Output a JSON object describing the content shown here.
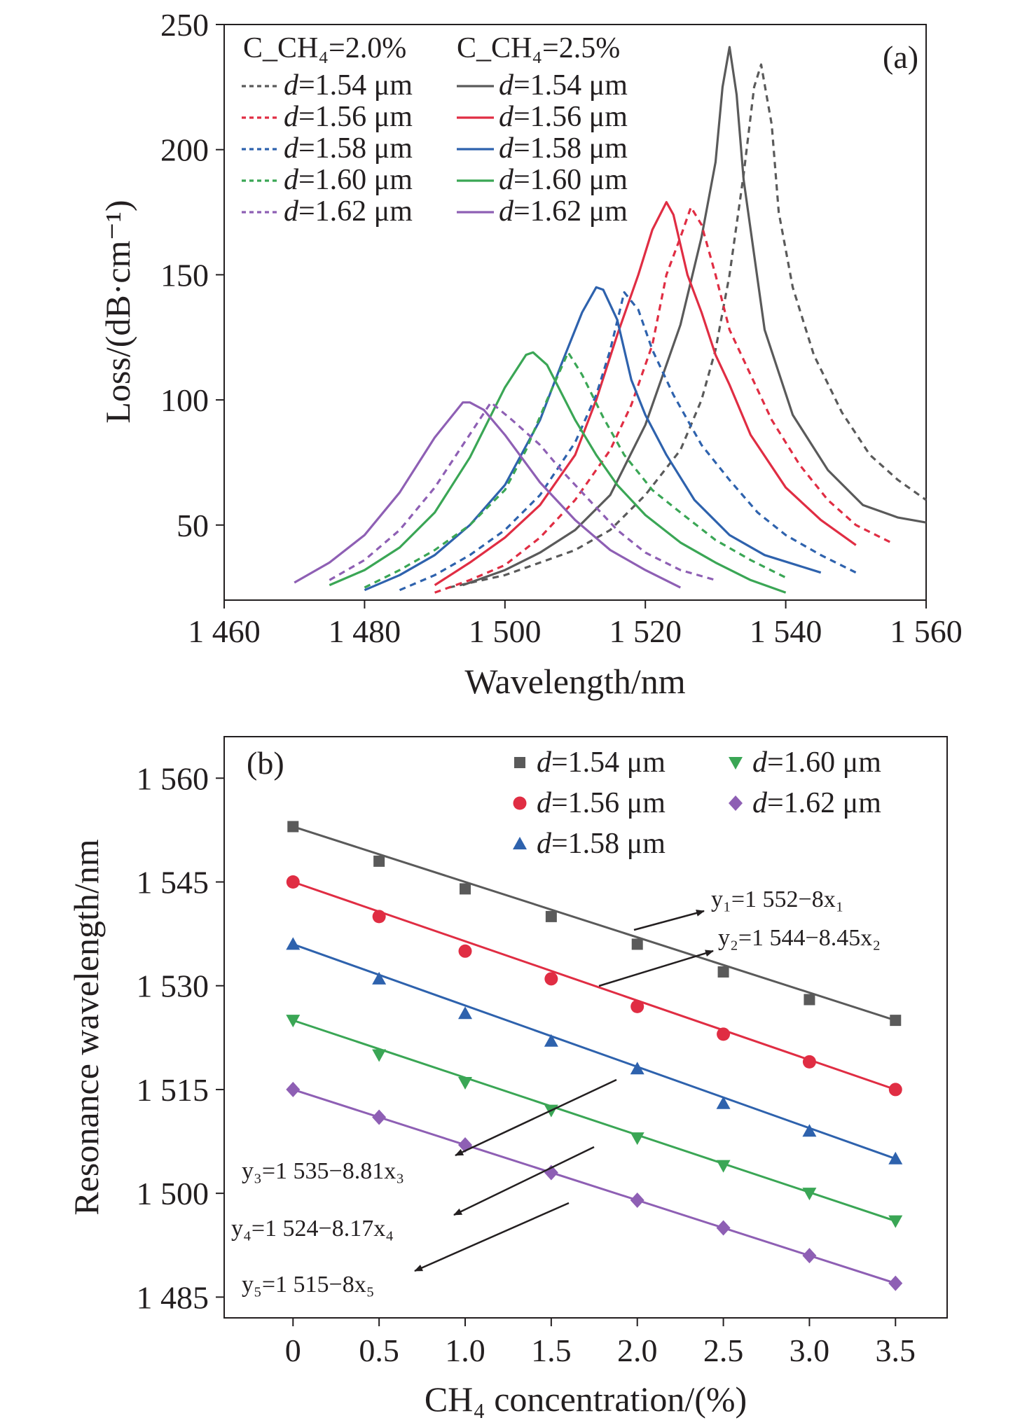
{
  "chart_data": [
    {
      "type": "line",
      "panel_label": "(a)",
      "xlabel": "Wavelength/nm",
      "ylabel": "Loss/(dB·cm⁻¹)",
      "xlim": [
        1460,
        1560
      ],
      "ylim": [
        20,
        250
      ],
      "x_ticks": [
        1460,
        1480,
        1500,
        1520,
        1540,
        1560
      ],
      "x_tick_labels": [
        "1 460",
        "1 480",
        "1 500",
        "1 520",
        "1 540",
        "1 560"
      ],
      "y_ticks": [
        50,
        100,
        150,
        200,
        250
      ],
      "y_tick_labels": [
        "50",
        "100",
        "150",
        "200",
        "250"
      ],
      "legend_headers": [
        "C_CH₄=2.0%",
        "C_CH₄=2.5%"
      ],
      "legend_labels": [
        "d=1.54 μm",
        "d=1.56 μm",
        "d=1.58 μm",
        "d=1.60 μm",
        "d=1.62 μm"
      ],
      "legend_position": "top-left",
      "series": [
        {
          "name": "C_CH₄=2.0%, d=1.54 μm",
          "color": "#5a5a5a",
          "dashed": true,
          "points": [
            [
              1492,
              25
            ],
            [
              1500,
              30
            ],
            [
              1510,
              40
            ],
            [
              1515,
              48
            ],
            [
              1520,
              62
            ],
            [
              1525,
              80
            ],
            [
              1528,
              100
            ],
            [
              1530,
              120
            ],
            [
              1532,
              150
            ],
            [
              1534,
              190
            ],
            [
              1535.5,
              225
            ],
            [
              1536.5,
              234
            ],
            [
              1538,
              210
            ],
            [
              1539,
              175
            ],
            [
              1541,
              145
            ],
            [
              1544,
              118
            ],
            [
              1548,
              95
            ],
            [
              1552,
              78
            ],
            [
              1556,
              68
            ],
            [
              1560,
              60
            ]
          ]
        },
        {
          "name": "C_CH₄=2.5%, d=1.54 μm",
          "color": "#5a5a5a",
          "dashed": false,
          "points": [
            [
              1494,
              26
            ],
            [
              1500,
              32
            ],
            [
              1505,
              39
            ],
            [
              1510,
              48
            ],
            [
              1515,
              62
            ],
            [
              1520,
              90
            ],
            [
              1525,
              130
            ],
            [
              1528,
              165
            ],
            [
              1530,
              195
            ],
            [
              1531,
              225
            ],
            [
              1532,
              241
            ],
            [
              1533,
              222
            ],
            [
              1534,
              188
            ],
            [
              1537,
              128
            ],
            [
              1541,
              94
            ],
            [
              1546,
              72
            ],
            [
              1551,
              58
            ],
            [
              1556,
              53
            ],
            [
              1560,
              51
            ]
          ]
        },
        {
          "name": "C_CH₄=2.0%, d=1.56 μm",
          "color": "#e02d43",
          "dashed": true,
          "points": [
            [
              1490,
              23
            ],
            [
              1495,
              28
            ],
            [
              1500,
              34
            ],
            [
              1505,
              45
            ],
            [
              1510,
              60
            ],
            [
              1515,
              80
            ],
            [
              1518,
              98
            ],
            [
              1521,
              122
            ],
            [
              1523,
              150
            ],
            [
              1525,
              165
            ],
            [
              1526.5,
              177
            ],
            [
              1528,
              170
            ],
            [
              1530,
              150
            ],
            [
              1532,
              128
            ],
            [
              1535,
              110
            ],
            [
              1538,
              92
            ],
            [
              1542,
              74
            ],
            [
              1546,
              60
            ],
            [
              1550,
              50
            ],
            [
              1555,
              43
            ]
          ]
        },
        {
          "name": "C_CH₄=2.5%, d=1.56 μm",
          "color": "#e02d43",
          "dashed": false,
          "points": [
            [
              1490,
              26
            ],
            [
              1495,
              35
            ],
            [
              1500,
              45
            ],
            [
              1505,
              58
            ],
            [
              1510,
              78
            ],
            [
              1513,
              100
            ],
            [
              1516,
              126
            ],
            [
              1519,
              150
            ],
            [
              1521,
              168
            ],
            [
              1523,
              179
            ],
            [
              1524,
              174
            ],
            [
              1526,
              150
            ],
            [
              1528,
              135
            ],
            [
              1530,
              118
            ],
            [
              1532,
              106
            ],
            [
              1535,
              86
            ],
            [
              1540,
              65
            ],
            [
              1545,
              52
            ],
            [
              1550,
              42
            ]
          ]
        },
        {
          "name": "C_CH₄=2.0%, d=1.58 μm",
          "color": "#2e62ad",
          "dashed": true,
          "points": [
            [
              1485,
              24
            ],
            [
              1490,
              30
            ],
            [
              1495,
              38
            ],
            [
              1500,
              48
            ],
            [
              1505,
              62
            ],
            [
              1510,
              83
            ],
            [
              1513,
              102
            ],
            [
              1515,
              120
            ],
            [
              1517,
              143
            ],
            [
              1519,
              136
            ],
            [
              1521,
              120
            ],
            [
              1524,
              102
            ],
            [
              1528,
              82
            ],
            [
              1532,
              68
            ],
            [
              1536,
              55
            ],
            [
              1540,
              46
            ],
            [
              1545,
              38
            ],
            [
              1550,
              31
            ]
          ]
        },
        {
          "name": "C_CH₄=2.5%, d=1.58 μm",
          "color": "#2e62ad",
          "dashed": false,
          "points": [
            [
              1480,
              24
            ],
            [
              1485,
              30
            ],
            [
              1490,
              38
            ],
            [
              1495,
              50
            ],
            [
              1500,
              66
            ],
            [
              1505,
              92
            ],
            [
              1508,
              114
            ],
            [
              1511,
              135
            ],
            [
              1513,
              145
            ],
            [
              1514,
              144
            ],
            [
              1516,
              132
            ],
            [
              1518,
              108
            ],
            [
              1520,
              94
            ],
            [
              1523,
              78
            ],
            [
              1527,
              60
            ],
            [
              1532,
              46
            ],
            [
              1537,
              38
            ],
            [
              1545,
              31
            ]
          ]
        },
        {
          "name": "C_CH₄=2.0%, d=1.60 μm",
          "color": "#3aa655",
          "dashed": true,
          "points": [
            [
              1480,
              25
            ],
            [
              1485,
              32
            ],
            [
              1490,
              40
            ],
            [
              1495,
              50
            ],
            [
              1500,
              64
            ],
            [
              1503,
              80
            ],
            [
              1506,
              100
            ],
            [
              1509,
              119
            ],
            [
              1511,
              110
            ],
            [
              1514,
              93
            ],
            [
              1517,
              78
            ],
            [
              1521,
              64
            ],
            [
              1525,
              55
            ],
            [
              1530,
              44
            ],
            [
              1535,
              36
            ],
            [
              1540,
              29
            ]
          ]
        },
        {
          "name": "C_CH₄=2.5%, d=1.60 μm",
          "color": "#3aa655",
          "dashed": false,
          "points": [
            [
              1475,
              26
            ],
            [
              1480,
              32
            ],
            [
              1485,
              41
            ],
            [
              1490,
              55
            ],
            [
              1495,
              77
            ],
            [
              1500,
              105
            ],
            [
              1503,
              118
            ],
            [
              1504,
              119
            ],
            [
              1506,
              114
            ],
            [
              1510,
              92
            ],
            [
              1513,
              78
            ],
            [
              1516,
              66
            ],
            [
              1520,
              54
            ],
            [
              1525,
              43
            ],
            [
              1530,
              35
            ],
            [
              1535,
              28
            ],
            [
              1540,
              23
            ]
          ]
        },
        {
          "name": "C_CH₄=2.0%, d=1.62 μm",
          "color": "#8e5fb4",
          "dashed": true,
          "points": [
            [
              1475,
              28
            ],
            [
              1480,
              36
            ],
            [
              1485,
              48
            ],
            [
              1490,
              65
            ],
            [
              1494,
              82
            ],
            [
              1498,
              99
            ],
            [
              1501,
              92
            ],
            [
              1505,
              82
            ],
            [
              1508,
              72
            ],
            [
              1512,
              60
            ],
            [
              1516,
              48
            ],
            [
              1520,
              39
            ],
            [
              1525,
              32
            ],
            [
              1530,
              28
            ]
          ]
        },
        {
          "name": "C_CH₄=2.5%, d=1.62 μm",
          "color": "#8e5fb4",
          "dashed": false,
          "points": [
            [
              1470,
              27
            ],
            [
              1475,
              35
            ],
            [
              1480,
              46
            ],
            [
              1485,
              63
            ],
            [
              1490,
              85
            ],
            [
              1494,
              99
            ],
            [
              1495,
              99
            ],
            [
              1497,
              96
            ],
            [
              1500,
              86
            ],
            [
              1505,
              67
            ],
            [
              1510,
              52
            ],
            [
              1515,
              40
            ],
            [
              1520,
              32
            ],
            [
              1525,
              25
            ]
          ]
        }
      ]
    },
    {
      "type": "scatter",
      "panel_label": "(b)",
      "xlabel": "CH₄ concentration/(%)",
      "ylabel": "Resonance wavelength/nm",
      "xlim": [
        -0.4,
        3.8
      ],
      "ylim": [
        1482,
        1566
      ],
      "x_ticks": [
        0,
        0.5,
        1.0,
        1.5,
        2.0,
        2.5,
        3.0,
        3.5
      ],
      "x_tick_labels": [
        "0",
        "0.5",
        "1.0",
        "1.5",
        "2.0",
        "2.5",
        "3.0",
        "3.5"
      ],
      "y_ticks": [
        1485,
        1500,
        1515,
        1530,
        1545,
        1560
      ],
      "y_tick_labels": [
        "1 485",
        "1 500",
        "1 515",
        "1 530",
        "1 545",
        "1 560"
      ],
      "legend_position": "top-right",
      "x": [
        0,
        0.5,
        1.0,
        1.5,
        2.0,
        2.5,
        3.0,
        3.5
      ],
      "series": [
        {
          "name": "d=1.54 μm",
          "color": "#5a5a5a",
          "marker": "square",
          "values": [
            1553,
            1548,
            1544,
            1540,
            1536,
            1532,
            1528,
            1525
          ],
          "fit": [
            1552,
            -8
          ]
        },
        {
          "name": "d=1.56 μm",
          "color": "#e02d43",
          "marker": "circle",
          "values": [
            1545,
            1540,
            1535,
            1531,
            1527,
            1523,
            1519,
            1515
          ],
          "fit": [
            1544,
            -8.45
          ]
        },
        {
          "name": "d=1.58 μm",
          "color": "#2e62ad",
          "marker": "triangle-up",
          "values": [
            1536,
            1531,
            1526,
            1522,
            1518,
            1513,
            1509,
            1505
          ],
          "fit": [
            1535,
            -8.81
          ]
        },
        {
          "name": "d=1.60 μm",
          "color": "#3aa655",
          "marker": "triangle-down",
          "values": [
            1525,
            1520,
            1516,
            1512,
            1508,
            1504,
            1500,
            1496
          ],
          "fit": [
            1524,
            -8.17
          ]
        },
        {
          "name": "d=1.62 μm",
          "color": "#8e5fb4",
          "marker": "diamond",
          "values": [
            1515,
            1511,
            1507,
            1503,
            1499,
            1495,
            1491,
            1487
          ],
          "fit": [
            1515,
            -8
          ]
        }
      ],
      "annotations": [
        "y₁=1 552−8x₁",
        "y₂=1 544−8.45x₂",
        "y₃=1 535−8.81x₃",
        "y₄=1 524−8.17x₄",
        "y₅=1 515−8x₅"
      ]
    }
  ]
}
